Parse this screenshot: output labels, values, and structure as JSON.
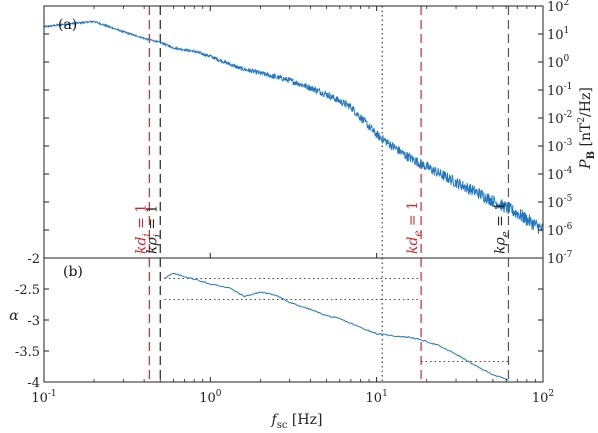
{
  "chart_data": [
    {
      "panel": "(a)",
      "type": "line",
      "xscale": "log",
      "yscale": "log",
      "xlim": [
        0.1,
        100
      ],
      "ylim": [
        1e-07,
        100
      ],
      "ylabel": "P_B [nT^2/Hz]",
      "ylabel_parts": {
        "main": "P",
        "sub": "B",
        "unit_open": " [nT",
        "sup": "2",
        "unit_close": "/Hz]"
      },
      "yticks": [
        1e-07,
        1e-06,
        1e-05,
        0.0001,
        0.001,
        0.01,
        0.1,
        1,
        10,
        100
      ],
      "ytick_labels": [
        {
          "base": "10",
          "exp": "-7"
        },
        {
          "base": "10",
          "exp": "-6"
        },
        {
          "base": "10",
          "exp": "-5"
        },
        {
          "base": "10",
          "exp": "-4"
        },
        {
          "base": "10",
          "exp": "-3"
        },
        {
          "base": "10",
          "exp": "-2"
        },
        {
          "base": "10",
          "exp": "-1"
        },
        {
          "base": "10",
          "exp": "0"
        },
        {
          "base": "10",
          "exp": "1"
        },
        {
          "base": "10",
          "exp": "2"
        }
      ],
      "series": [
        {
          "color": "#1f77c4",
          "x": [
            0.1,
            0.13,
            0.2,
            0.3,
            0.4,
            0.5,
            0.6,
            0.8,
            1,
            1.5,
            2,
            3,
            4,
            5,
            7,
            10,
            15,
            20,
            30,
            40,
            50,
            70,
            100
          ],
          "y": [
            18,
            22,
            28,
            12,
            7,
            5,
            3.2,
            2.4,
            1.6,
            0.6,
            0.4,
            0.22,
            0.12,
            0.07,
            0.025,
            0.0025,
            0.00045,
            0.00018,
            5e-05,
            2.2e-05,
            1.1e-05,
            4e-06,
            1e-06
          ]
        }
      ],
      "vlines": [
        {
          "x": 0.43,
          "color": "#d62728",
          "dash": "long",
          "label": {
            "main": "kd",
            "sub": "i",
            "rest": " = 1"
          },
          "label_color": "#d62728"
        },
        {
          "x": 0.5,
          "color": "#222222",
          "dash": "long",
          "label": {
            "main": "kρ",
            "sub": "i",
            "rest": " = 1"
          },
          "label_color": "#222222"
        },
        {
          "x": 10.8,
          "color": "#444444",
          "dash": "dotted"
        },
        {
          "x": 18.5,
          "color": "#d62728",
          "dash": "long",
          "label": {
            "main": "kd",
            "sub": "e",
            "rest": " = 1"
          },
          "label_color": "#d62728"
        },
        {
          "x": 62,
          "color": "#555555",
          "dash": "long",
          "label": {
            "main": "kρ",
            "sub": "e",
            "rest": " = 1"
          },
          "label_color": "#222222"
        }
      ]
    },
    {
      "panel": "(b)",
      "type": "line",
      "xscale": "log",
      "xlim": [
        0.1,
        100
      ],
      "ylim": [
        -4,
        -2
      ],
      "xlabel": "f_sc [Hz]",
      "xlabel_parts": {
        "main": "f",
        "sub": "sc",
        "unit": " [Hz]"
      },
      "ylabel": "α",
      "yticks": [
        -4,
        -3.5,
        -3,
        -2.5,
        -2
      ],
      "ytick_labels": [
        "-4",
        "-3.5",
        "-3",
        "-2.5",
        "-2"
      ],
      "xticks": [
        0.1,
        1,
        10,
        100
      ],
      "xtick_labels": [
        {
          "base": "10",
          "exp": "-1"
        },
        {
          "base": "10",
          "exp": "0"
        },
        {
          "base": "10",
          "exp": "1"
        },
        {
          "base": "10",
          "exp": "2"
        }
      ],
      "series": [
        {
          "color": "#1f77c4",
          "x": [
            0.53,
            0.6,
            0.7,
            0.85,
            1.0,
            1.3,
            1.6,
            2.0,
            2.5,
            3.0,
            4.0,
            5.0,
            6.0,
            8.0,
            10.0,
            13.0,
            16.0,
            19.0,
            23.0,
            30.0,
            40.0,
            50.0,
            62.0
          ],
          "y": [
            -2.32,
            -2.25,
            -2.3,
            -2.36,
            -2.42,
            -2.48,
            -2.62,
            -2.55,
            -2.6,
            -2.72,
            -2.83,
            -2.93,
            -2.98,
            -3.12,
            -3.22,
            -3.26,
            -3.28,
            -3.33,
            -3.4,
            -3.55,
            -3.75,
            -3.88,
            -3.97
          ]
        }
      ],
      "hlines": [
        {
          "y": -2.33,
          "x": [
            0.53,
            18.5
          ],
          "style": "dotted"
        },
        {
          "y": -2.67,
          "x": [
            0.53,
            18.5
          ],
          "style": "dotted"
        },
        {
          "y": -3.67,
          "x": [
            18.5,
            62
          ],
          "style": "dotted"
        }
      ],
      "vlines": [
        {
          "x": 0.43,
          "color": "#d62728",
          "dash": "long"
        },
        {
          "x": 0.5,
          "color": "#222222",
          "dash": "long"
        },
        {
          "x": 10.8,
          "color": "#444444",
          "dash": "dotted"
        },
        {
          "x": 18.5,
          "color": "#d62728",
          "dash": "long"
        },
        {
          "x": 62,
          "color": "#555555",
          "dash": "long"
        }
      ]
    }
  ]
}
